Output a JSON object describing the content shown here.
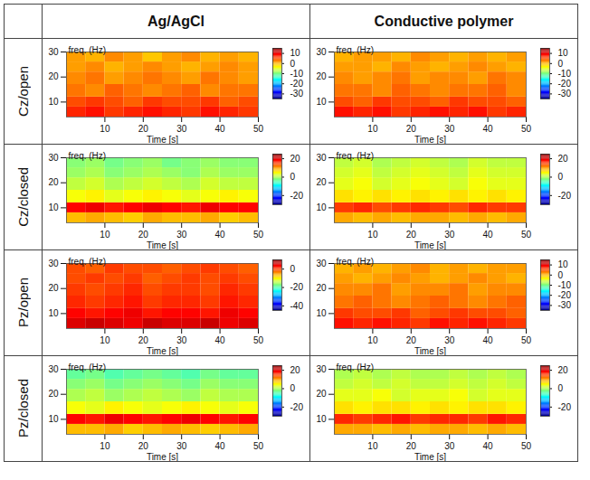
{
  "table": {
    "columns": [
      "Ag/AgCl",
      "Conductive polymer"
    ],
    "rows": [
      "Cz/open",
      "Cz/closed",
      "Pz/open",
      "Pz/closed"
    ]
  },
  "chart_data": [
    {
      "type": "heatmap",
      "x_label": "Time [s]",
      "y_label": "freq. (Hz)",
      "xlim": [
        0,
        50
      ],
      "xticks": [
        10,
        20,
        30,
        40,
        50
      ],
      "ylim": [
        4,
        30
      ],
      "yticks": [
        10,
        20,
        30
      ],
      "x": [
        0,
        5,
        10,
        15,
        20,
        25,
        30,
        35,
        40,
        45,
        50
      ],
      "y": [
        4,
        8,
        12,
        17,
        22,
        26,
        30
      ],
      "values": [
        [
          7,
          8,
          6,
          7,
          8,
          7,
          6,
          8,
          7,
          6
        ],
        [
          5,
          6,
          5,
          4,
          6,
          5,
          5,
          6,
          4,
          5
        ],
        [
          3,
          2,
          4,
          3,
          2,
          3,
          4,
          2,
          3,
          3
        ],
        [
          2,
          3,
          1,
          2,
          3,
          2,
          1,
          3,
          2,
          1
        ],
        [
          1,
          2,
          0,
          1,
          2,
          1,
          0,
          1,
          2,
          1
        ],
        [
          1,
          0,
          2,
          1,
          -1,
          1,
          2,
          0,
          1,
          0
        ]
      ],
      "colorbar": {
        "range": [
          -35,
          15
        ],
        "ticks": [
          10,
          0,
          -10,
          -20,
          -30
        ]
      }
    },
    {
      "type": "heatmap",
      "x_label": "Time [s]",
      "y_label": "freq. (Hz)",
      "xlim": [
        0,
        50
      ],
      "xticks": [
        10,
        20,
        30,
        40,
        50
      ],
      "ylim": [
        4,
        30
      ],
      "yticks": [
        10,
        20,
        30
      ],
      "x": [
        0,
        5,
        10,
        15,
        20,
        25,
        30,
        35,
        40,
        45,
        50
      ],
      "y": [
        4,
        8,
        12,
        17,
        22,
        26,
        30
      ],
      "values": [
        [
          8,
          7,
          8,
          6,
          7,
          8,
          7,
          8,
          6,
          7
        ],
        [
          5,
          4,
          6,
          5,
          5,
          4,
          6,
          5,
          5,
          4
        ],
        [
          3,
          3,
          2,
          4,
          3,
          2,
          3,
          3,
          4,
          2
        ],
        [
          2,
          1,
          2,
          3,
          1,
          2,
          2,
          1,
          3,
          2
        ],
        [
          1,
          1,
          0,
          2,
          1,
          0,
          1,
          2,
          1,
          0
        ],
        [
          0,
          1,
          1,
          0,
          2,
          1,
          0,
          1,
          0,
          1
        ]
      ],
      "colorbar": {
        "range": [
          -35,
          15
        ],
        "ticks": [
          10,
          0,
          -10,
          -20,
          -30
        ]
      }
    },
    {
      "type": "heatmap",
      "x_label": "Time [s]",
      "y_label": "freq. (Hz)",
      "xlim": [
        0,
        50
      ],
      "xticks": [
        10,
        20,
        30,
        40,
        50
      ],
      "ylim": [
        4,
        30
      ],
      "yticks": [
        10,
        20,
        30
      ],
      "x": [
        0,
        5,
        10,
        15,
        20,
        25,
        30,
        35,
        40,
        45,
        50
      ],
      "y": [
        4,
        8,
        12,
        17,
        22,
        26,
        30
      ],
      "values": [
        [
          8,
          9,
          8,
          7,
          9,
          8,
          8,
          9,
          7,
          8
        ],
        [
          18,
          19,
          17,
          18,
          19,
          18,
          17,
          19,
          18,
          18
        ],
        [
          4,
          5,
          3,
          4,
          5,
          4,
          3,
          4,
          5,
          4
        ],
        [
          1,
          2,
          0,
          1,
          2,
          1,
          0,
          2,
          1,
          1
        ],
        [
          -1,
          0,
          -2,
          -1,
          0,
          -1,
          -2,
          0,
          -1,
          -1
        ],
        [
          -2,
          -1,
          -3,
          -2,
          -1,
          -3,
          -2,
          -1,
          -2,
          -2
        ]
      ],
      "colorbar": {
        "range": [
          -30,
          25
        ],
        "ticks": [
          20,
          0,
          -20
        ]
      }
    },
    {
      "type": "heatmap",
      "x_label": "Time [s]",
      "y_label": "freq. (Hz)",
      "xlim": [
        0,
        50
      ],
      "xticks": [
        10,
        20,
        30,
        40,
        50
      ],
      "ylim": [
        4,
        30
      ],
      "yticks": [
        10,
        20,
        30
      ],
      "x": [
        0,
        5,
        10,
        15,
        20,
        25,
        30,
        35,
        40,
        45,
        50
      ],
      "y": [
        4,
        8,
        12,
        17,
        22,
        26,
        30
      ],
      "values": [
        [
          9,
          8,
          9,
          8,
          9,
          9,
          8,
          9,
          8,
          9
        ],
        [
          15,
          16,
          14,
          15,
          16,
          15,
          14,
          16,
          15,
          15
        ],
        [
          6,
          5,
          6,
          5,
          6,
          5,
          6,
          5,
          6,
          5
        ],
        [
          3,
          4,
          2,
          3,
          4,
          3,
          2,
          4,
          3,
          3
        ],
        [
          2,
          3,
          1,
          2,
          3,
          2,
          1,
          3,
          2,
          2
        ],
        [
          1,
          2,
          0,
          1,
          2,
          1,
          0,
          2,
          1,
          1
        ]
      ],
      "colorbar": {
        "range": [
          -30,
          25
        ],
        "ticks": [
          20,
          0,
          -20
        ]
      }
    },
    {
      "type": "heatmap",
      "x_label": "Time [s]",
      "y_label": "freq. (Hz)",
      "xlim": [
        0,
        50
      ],
      "xticks": [
        10,
        20,
        30,
        40,
        50
      ],
      "ylim": [
        4,
        30
      ],
      "yticks": [
        10,
        20,
        30
      ],
      "x": [
        0,
        5,
        10,
        15,
        20,
        25,
        30,
        35,
        40,
        45,
        50
      ],
      "y": [
        4,
        8,
        12,
        17,
        22,
        26,
        30
      ],
      "values": [
        [
          5,
          6,
          5,
          4,
          6,
          5,
          5,
          6,
          4,
          5
        ],
        [
          3,
          2,
          3,
          4,
          2,
          3,
          3,
          2,
          4,
          3
        ],
        [
          1,
          0,
          1,
          2,
          0,
          1,
          1,
          0,
          2,
          1
        ],
        [
          0,
          -1,
          0,
          1,
          -1,
          0,
          0,
          -1,
          1,
          0
        ],
        [
          -1,
          0,
          -1,
          0,
          -2,
          -1,
          0,
          -1,
          0,
          -1
        ],
        [
          -1,
          -2,
          0,
          -1,
          -1,
          -2,
          -1,
          0,
          -1,
          -2
        ]
      ],
      "colorbar": {
        "range": [
          -45,
          10
        ],
        "ticks": [
          0,
          -20,
          -40
        ]
      }
    },
    {
      "type": "heatmap",
      "x_label": "Time [s]",
      "y_label": "freq. (Hz)",
      "xlim": [
        0,
        50
      ],
      "xticks": [
        10,
        20,
        30,
        40,
        50
      ],
      "ylim": [
        4,
        30
      ],
      "yticks": [
        10,
        20,
        30
      ],
      "x": [
        0,
        5,
        10,
        15,
        20,
        25,
        30,
        35,
        40,
        45,
        50
      ],
      "y": [
        4,
        8,
        12,
        17,
        22,
        26,
        30
      ],
      "values": [
        [
          8,
          7,
          8,
          7,
          6,
          8,
          7,
          8,
          7,
          6
        ],
        [
          6,
          5,
          5,
          6,
          4,
          5,
          6,
          5,
          5,
          4
        ],
        [
          3,
          4,
          3,
          2,
          3,
          4,
          3,
          2,
          3,
          4
        ],
        [
          2,
          2,
          3,
          1,
          2,
          2,
          3,
          1,
          2,
          2
        ],
        [
          1,
          0,
          1,
          2,
          1,
          0,
          1,
          2,
          1,
          0
        ],
        [
          0,
          1,
          0,
          1,
          2,
          0,
          1,
          0,
          1,
          1
        ]
      ],
      "colorbar": {
        "range": [
          -35,
          15
        ],
        "ticks": [
          10,
          0,
          -10,
          -20,
          -30
        ]
      }
    },
    {
      "type": "heatmap",
      "x_label": "Time [s]",
      "y_label": "freq. (Hz)",
      "xlim": [
        0,
        50
      ],
      "xticks": [
        10,
        20,
        30,
        40,
        50
      ],
      "ylim": [
        4,
        30
      ],
      "yticks": [
        10,
        20,
        30
      ],
      "x": [
        0,
        5,
        10,
        15,
        20,
        25,
        30,
        35,
        40,
        45,
        50
      ],
      "y": [
        4,
        8,
        12,
        17,
        22,
        26,
        30
      ],
      "values": [
        [
          8,
          8,
          9,
          7,
          8,
          9,
          8,
          7,
          8,
          9
        ],
        [
          18,
          17,
          19,
          18,
          17,
          18,
          19,
          18,
          17,
          18
        ],
        [
          4,
          3,
          5,
          4,
          3,
          4,
          5,
          4,
          3,
          4
        ],
        [
          0,
          1,
          -1,
          0,
          1,
          0,
          -1,
          1,
          0,
          0
        ],
        [
          -2,
          -1,
          -3,
          -2,
          -1,
          -2,
          -3,
          -1,
          -2,
          -2
        ],
        [
          -4,
          -3,
          -5,
          -4,
          -3,
          -4,
          -5,
          -3,
          -4,
          -4
        ]
      ],
      "colorbar": {
        "range": [
          -30,
          25
        ],
        "ticks": [
          20,
          0,
          -20
        ]
      }
    },
    {
      "type": "heatmap",
      "x_label": "Time [s]",
      "y_label": "freq. (Hz)",
      "xlim": [
        0,
        50
      ],
      "xticks": [
        10,
        20,
        30,
        40,
        50
      ],
      "ylim": [
        4,
        30
      ],
      "yticks": [
        10,
        20,
        30
      ],
      "x": [
        0,
        5,
        10,
        15,
        20,
        25,
        30,
        35,
        40,
        45,
        50
      ],
      "y": [
        4,
        8,
        12,
        17,
        22,
        26,
        30
      ],
      "values": [
        [
          9,
          9,
          8,
          9,
          8,
          9,
          9,
          8,
          9,
          8
        ],
        [
          16,
          15,
          16,
          17,
          15,
          16,
          16,
          15,
          17,
          16
        ],
        [
          6,
          5,
          6,
          6,
          5,
          6,
          5,
          6,
          6,
          5
        ],
        [
          3,
          3,
          4,
          2,
          3,
          3,
          4,
          2,
          3,
          3
        ],
        [
          1,
          2,
          1,
          2,
          1,
          1,
          2,
          1,
          2,
          1
        ],
        [
          0,
          1,
          0,
          1,
          0,
          0,
          1,
          0,
          1,
          0
        ]
      ],
      "colorbar": {
        "range": [
          -30,
          25
        ],
        "ticks": [
          20,
          0,
          -20
        ]
      }
    }
  ]
}
